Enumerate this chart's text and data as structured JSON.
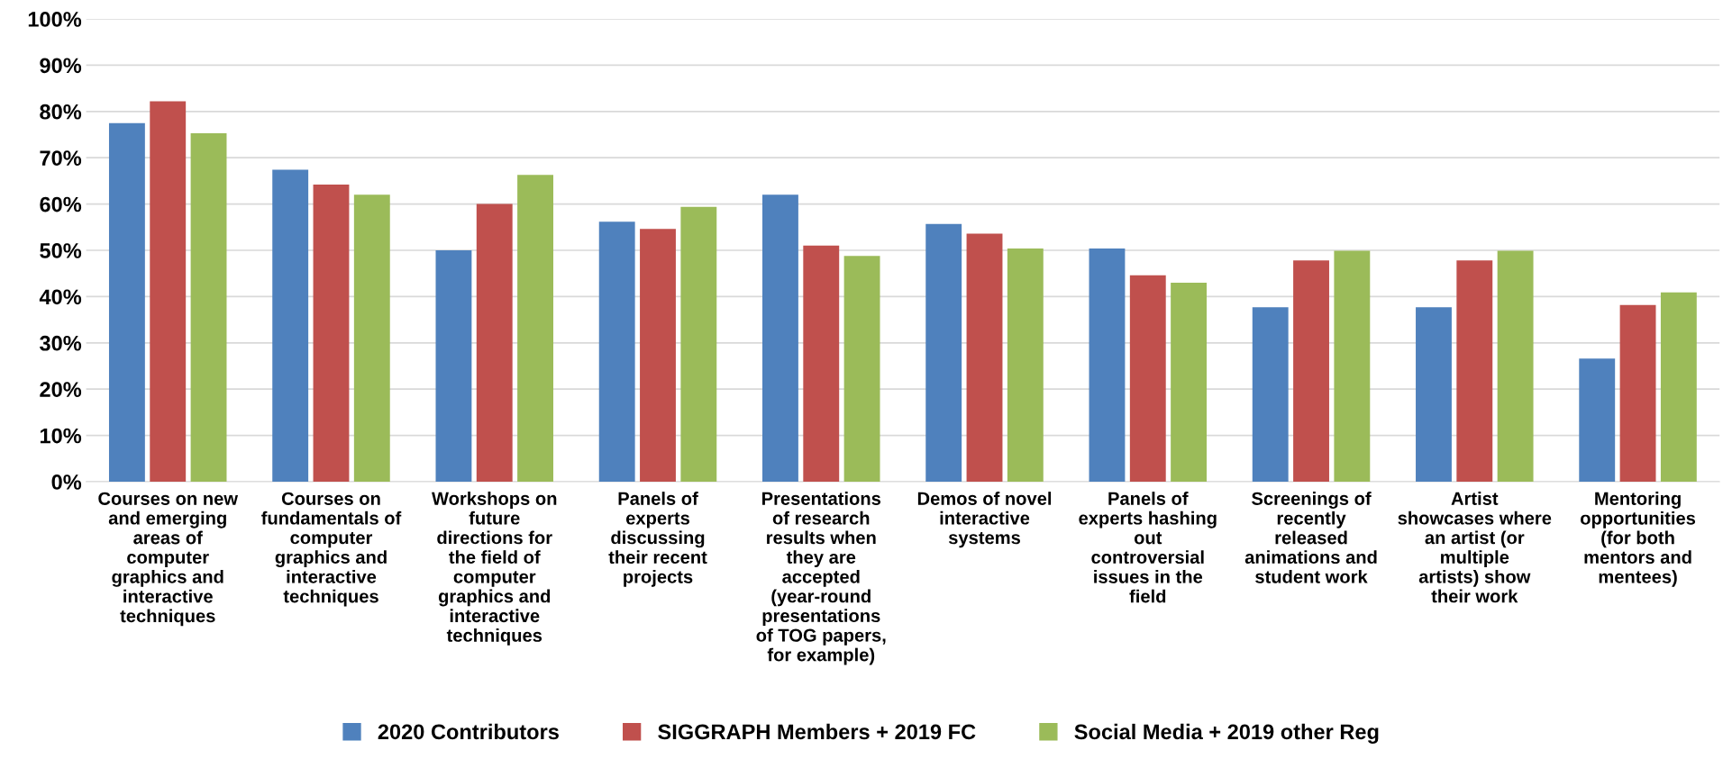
{
  "chart_data": {
    "type": "bar",
    "categories": [
      "Courses on new and emerging areas of computer graphics and interactive techniques",
      "Courses on fundamentals of computer graphics and interactive techniques",
      "Workshops on future directions for the field of computer graphics and interactive techniques",
      "Panels of experts discussing their recent projects",
      "Presentations of research results when they are accepted (year-round presentations of TOG papers, for example)",
      "Demos of novel interactive systems",
      "Panels of experts hashing out controversial issues in the field",
      "Screenings of recently released animations and student work",
      "Artist showcases where an artist (or multiple artists) show their work",
      "Mentoring opportunities (for both mentors and mentees)"
    ],
    "series": [
      {
        "name": "2020 Contributors",
        "color": "#4f81bd",
        "values": [
          77.5,
          67.4,
          50.0,
          56.2,
          62.0,
          55.7,
          50.4,
          37.7,
          37.7,
          26.6
        ]
      },
      {
        "name": "SIGGRAPH Members + 2019 FC",
        "color": "#c0504d",
        "values": [
          82.2,
          64.2,
          60.0,
          54.6,
          51.0,
          53.6,
          44.6,
          47.8,
          47.8,
          38.2
        ]
      },
      {
        "name": "Social Media + 2019 other Reg",
        "color": "#9bbb59",
        "values": [
          75.3,
          62.0,
          66.3,
          59.4,
          48.8,
          50.4,
          43.0,
          49.9,
          49.9,
          40.9
        ]
      }
    ],
    "ylim": [
      0,
      100
    ],
    "yticks": [
      {
        "value": 0,
        "label": "0%"
      },
      {
        "value": 10,
        "label": "10%"
      },
      {
        "value": 20,
        "label": "20%"
      },
      {
        "value": 30,
        "label": "30%"
      },
      {
        "value": 40,
        "label": "40%"
      },
      {
        "value": 50,
        "label": "50%"
      },
      {
        "value": 60,
        "label": "60%"
      },
      {
        "value": 70,
        "label": "70%"
      },
      {
        "value": 80,
        "label": "80%"
      },
      {
        "value": 90,
        "label": "90%"
      },
      {
        "value": 100,
        "label": "100%"
      }
    ],
    "grid": "y",
    "legend": "bottom"
  }
}
